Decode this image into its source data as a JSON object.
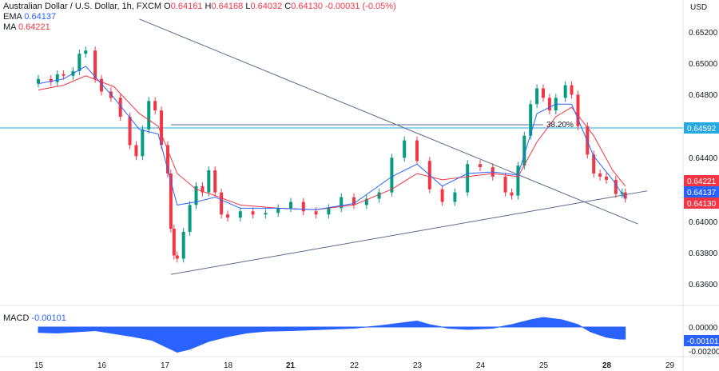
{
  "header": {
    "symbol": "Australian Dollar / U.S. Dollar, 1h, FXCM",
    "open_label": "O",
    "open": "0.64161",
    "high_label": "H",
    "high": "0.64168",
    "low_label": "L",
    "low": "0.64032",
    "close_label": "C",
    "close": "0.64130",
    "change": "-0.00031 (-0.05%)"
  },
  "indicators": {
    "ema_label": "EMA",
    "ema_value": "0.64137",
    "ma_label": "MA",
    "ma_value": "0.64221",
    "macd_label": "MACD",
    "macd_value": "-0.00101"
  },
  "currency": "USD",
  "colors": {
    "up": "#089981",
    "down": "#f23645",
    "ema": "#2962ff",
    "ma": "#f23645",
    "fib": "#26a9e0",
    "trend": "#5b6a8a",
    "macd": "#2962ff"
  },
  "chart_data": {
    "type": "candlestick",
    "title": "Australian Dollar / U.S. Dollar, 1h, FXCM",
    "price_ticks": [
      "0.65200",
      "0.65000",
      "0.64800",
      "0.64400",
      "0.64000",
      "0.63800",
      "0.63600"
    ],
    "x_ticks": [
      "15",
      "16",
      "17",
      "18",
      "21",
      "22",
      "23",
      "24",
      "25",
      "28",
      "29"
    ],
    "close_path": [
      [
        15.0,
        0.649
      ],
      [
        15.2,
        0.6488
      ],
      [
        15.3,
        0.6493
      ],
      [
        15.4,
        0.6492
      ],
      [
        15.55,
        0.6495
      ],
      [
        15.65,
        0.6506
      ],
      [
        15.75,
        0.6508
      ],
      [
        15.9,
        0.649
      ],
      [
        16.0,
        0.6482
      ],
      [
        16.15,
        0.6478
      ],
      [
        16.3,
        0.6466
      ],
      [
        16.45,
        0.6448
      ],
      [
        16.55,
        0.6441
      ],
      [
        16.65,
        0.6458
      ],
      [
        16.75,
        0.6476
      ],
      [
        16.85,
        0.647
      ],
      [
        16.95,
        0.6448
      ],
      [
        17.05,
        0.643
      ],
      [
        17.1,
        0.6395
      ],
      [
        17.15,
        0.6378
      ],
      [
        17.2,
        0.6376
      ],
      [
        17.3,
        0.6393
      ],
      [
        17.4,
        0.641
      ],
      [
        17.5,
        0.6422
      ],
      [
        17.6,
        0.6418
      ],
      [
        17.7,
        0.6432
      ],
      [
        17.8,
        0.6418
      ],
      [
        17.9,
        0.6404
      ],
      [
        18.0,
        0.6402
      ],
      [
        18.2,
        0.6406
      ],
      [
        18.4,
        0.6404
      ],
      [
        18.6,
        0.6405
      ],
      [
        18.8,
        0.6408
      ],
      [
        19.0,
        0.6412
      ],
      [
        19.2,
        0.6406
      ],
      [
        19.4,
        0.6404
      ],
      [
        19.6,
        0.6408
      ],
      [
        19.8,
        0.6415
      ],
      [
        20.0,
        0.641
      ],
      [
        20.2,
        0.6414
      ],
      [
        20.4,
        0.6418
      ],
      [
        20.6,
        0.644
      ],
      [
        20.8,
        0.6451
      ],
      [
        21.0,
        0.6438
      ],
      [
        21.2,
        0.642
      ],
      [
        21.4,
        0.6412
      ],
      [
        21.6,
        0.6418
      ],
      [
        21.8,
        0.6436
      ],
      [
        22.0,
        0.6434
      ],
      [
        22.2,
        0.6428
      ],
      [
        22.4,
        0.6418
      ],
      [
        22.5,
        0.6416
      ],
      [
        22.6,
        0.6435
      ],
      [
        22.7,
        0.6454
      ],
      [
        22.8,
        0.6474
      ],
      [
        22.9,
        0.6484
      ],
      [
        23.0,
        0.6478
      ],
      [
        23.1,
        0.647
      ],
      [
        23.2,
        0.6478
      ],
      [
        23.35,
        0.6486
      ],
      [
        23.45,
        0.648
      ],
      [
        23.55,
        0.646
      ],
      [
        23.7,
        0.6442
      ],
      [
        23.8,
        0.643
      ],
      [
        23.9,
        0.6428
      ],
      [
        24.0,
        0.6426
      ],
      [
        24.15,
        0.6417
      ],
      [
        24.25,
        0.6418
      ],
      [
        24.3,
        0.6414
      ]
    ],
    "ema_path": [
      [
        15.0,
        0.6487
      ],
      [
        15.4,
        0.649
      ],
      [
        15.75,
        0.6498
      ],
      [
        16.2,
        0.6478
      ],
      [
        16.6,
        0.6458
      ],
      [
        16.9,
        0.6455
      ],
      [
        17.2,
        0.641
      ],
      [
        17.5,
        0.6412
      ],
      [
        17.8,
        0.6415
      ],
      [
        18.2,
        0.6408
      ],
      [
        18.8,
        0.6408
      ],
      [
        19.4,
        0.6407
      ],
      [
        20.0,
        0.6411
      ],
      [
        20.6,
        0.6428
      ],
      [
        21.0,
        0.6436
      ],
      [
        21.4,
        0.6422
      ],
      [
        21.8,
        0.643
      ],
      [
        22.2,
        0.6431
      ],
      [
        22.6,
        0.6429
      ],
      [
        22.9,
        0.6468
      ],
      [
        23.2,
        0.6474
      ],
      [
        23.45,
        0.6474
      ],
      [
        23.8,
        0.6441
      ],
      [
        24.1,
        0.6426
      ],
      [
        24.3,
        0.6414
      ]
    ],
    "ma_path": [
      [
        15.0,
        0.6483
      ],
      [
        15.4,
        0.6486
      ],
      [
        15.75,
        0.6492
      ],
      [
        16.2,
        0.6485
      ],
      [
        16.6,
        0.6468
      ],
      [
        16.9,
        0.646
      ],
      [
        17.2,
        0.643
      ],
      [
        17.5,
        0.642
      ],
      [
        17.8,
        0.6416
      ],
      [
        18.2,
        0.641
      ],
      [
        18.8,
        0.6408
      ],
      [
        19.4,
        0.6407
      ],
      [
        20.0,
        0.641
      ],
      [
        20.6,
        0.642
      ],
      [
        21.0,
        0.643
      ],
      [
        21.4,
        0.6426
      ],
      [
        21.8,
        0.6428
      ],
      [
        22.2,
        0.643
      ],
      [
        22.6,
        0.6428
      ],
      [
        22.9,
        0.645
      ],
      [
        23.2,
        0.6466
      ],
      [
        23.45,
        0.6472
      ],
      [
        23.8,
        0.6454
      ],
      [
        24.1,
        0.6432
      ],
      [
        24.3,
        0.6422
      ]
    ],
    "fib": {
      "label": "38.20%",
      "price": 0.64592,
      "price_label": "0.64592",
      "x_start": 17.1,
      "x_end": 23.0
    },
    "trendlines": [
      {
        "from": [
          16.6,
          0.6528
        ],
        "to": [
          24.5,
          0.6398
        ]
      },
      {
        "from": [
          17.1,
          0.6366
        ],
        "to": [
          24.65,
          0.6419
        ]
      }
    ],
    "price_badges": [
      {
        "label": "0.64221",
        "price": 0.64221,
        "color": "#f23645"
      },
      {
        "label": "0.64137",
        "price": 0.64137,
        "color": "#2962ff"
      },
      {
        "label": "0.64130",
        "price": 0.6413,
        "color": "#f23645"
      }
    ],
    "macd": {
      "ticks": [
        "0.00000",
        "-0.00101",
        "-0.00200"
      ],
      "badge_label": "-0.00101",
      "histogram": [
        [
          15.0,
          -0.00045
        ],
        [
          15.3,
          -0.0005
        ],
        [
          15.6,
          -0.0004
        ],
        [
          15.9,
          -0.0003
        ],
        [
          16.2,
          -0.00055
        ],
        [
          16.5,
          -0.0008
        ],
        [
          16.8,
          -0.0011
        ],
        [
          17.0,
          -0.0016
        ],
        [
          17.2,
          -0.0021
        ],
        [
          17.4,
          -0.00185
        ],
        [
          17.7,
          -0.0012
        ],
        [
          18.0,
          -0.0008
        ],
        [
          18.3,
          -0.0005
        ],
        [
          18.6,
          -0.00035
        ],
        [
          19.0,
          -0.0003
        ],
        [
          19.5,
          -0.0002
        ],
        [
          20.0,
          -0.0001
        ],
        [
          20.4,
          0.0001
        ],
        [
          20.7,
          0.0003
        ],
        [
          21.0,
          0.0005
        ],
        [
          21.2,
          0.0002
        ],
        [
          21.5,
          -0.0001
        ],
        [
          21.8,
          -0.0002
        ],
        [
          22.2,
          -0.0001
        ],
        [
          22.5,
          0.0002
        ],
        [
          22.8,
          0.0006
        ],
        [
          23.0,
          0.0008
        ],
        [
          23.3,
          0.0006
        ],
        [
          23.55,
          0.0002
        ],
        [
          23.75,
          -0.0004
        ],
        [
          24.0,
          -0.00085
        ],
        [
          24.2,
          -0.001
        ],
        [
          24.3,
          -0.00101
        ]
      ]
    }
  }
}
